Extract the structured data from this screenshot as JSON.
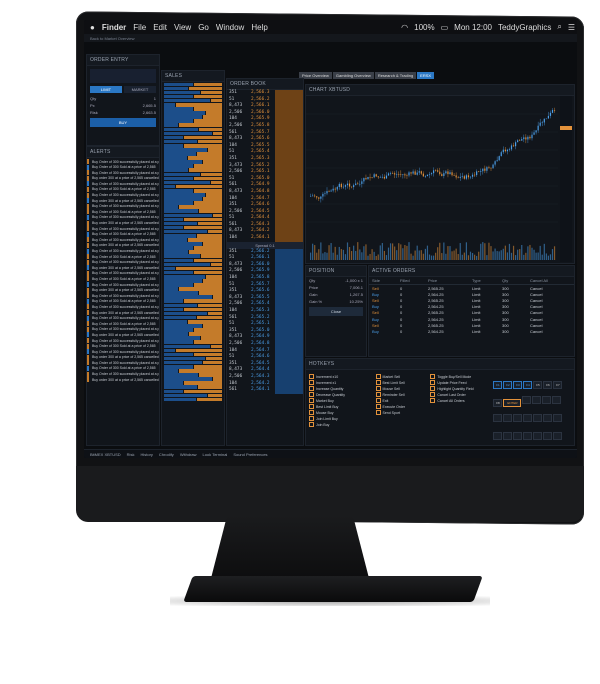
{
  "menubar": {
    "app": "Finder",
    "items": [
      "File",
      "Edit",
      "View",
      "Go",
      "Window",
      "Help"
    ],
    "battery": "100%",
    "clock": "Mon 12:00",
    "user": "TeddyGraphics"
  },
  "subbar": {
    "text": "Back to Market Overview"
  },
  "workspace_tabs": [
    "Price Overview",
    "Gambling Overview",
    "Research & Trading",
    "ERSX"
  ],
  "order_entry": {
    "title": "ORDER ENTRY",
    "type_options": [
      "LIMIT",
      "MARKET"
    ],
    "rows": [
      {
        "label": "Qty",
        "value": "1"
      },
      {
        "label": "Px",
        "value": "2,665.5"
      },
      {
        "label": "Risk",
        "value": "2,663.5"
      }
    ],
    "buy_label": "BUY"
  },
  "alerts": {
    "title": "ALERTS",
    "items": [
      "Buy Order of 300 successfully placed at a price of 2,564",
      "Buy Order of 300 Sold at a price of 2,565",
      "Buy Order of 300 successfully placed at a price of 2,564",
      "Buy order 300 at a price of 2,565 cancelled",
      "Buy Order of 300 successfully placed at a price of 2,564",
      "Buy Order of 300 Sold at a price of 2,565",
      "Buy Order of 300 successfully placed at a price of 2,564",
      "Buy order 300 at a price of 2,565 cancelled",
      "Buy Order of 300 successfully placed at a price of 2,564",
      "Buy Order of 300 Sold at a price of 2,565",
      "Buy Order of 300 successfully placed at a price of 2,564",
      "Buy order 300 at a price of 2,565 cancelled",
      "Buy Order of 300 successfully placed at a price of 2,564",
      "Buy Order of 300 Sold at a price of 2,565",
      "Buy Order of 300 successfully placed at a price of 2,564",
      "Buy order 300 at a price of 2,565 cancelled",
      "Buy Order of 300 successfully placed at a price of 2,564",
      "Buy Order of 300 Sold at a price of 2,565",
      "Buy Order of 300 successfully placed at a price of 2,564",
      "Buy order 300 at a price of 2,565 cancelled",
      "Buy Order of 300 successfully placed at a price of 2,564",
      "Buy Order of 300 Sold at a price of 2,565",
      "Buy Order of 300 successfully placed at a price of 2,564",
      "Buy order 300 at a price of 2,565 cancelled",
      "Buy Order of 300 successfully placed at a price of 2,564",
      "Buy Order of 300 Sold at a price of 2,565",
      "Buy Order of 300 successfully placed at a price of 2,564",
      "Buy order 300 at a price of 2,565 cancelled",
      "Buy Order of 300 successfully placed at a price of 2,564",
      "Buy Order of 300 Sold at a price of 2,565",
      "Buy Order of 300 successfully placed at a price of 2,564",
      "Buy order 300 at a price of 2,565 cancelled",
      "Buy Order of 300 successfully placed at a price of 2,564",
      "Buy Order of 300 Sold at a price of 2,565",
      "Buy Order of 300 successfully placed at a price of 2,564",
      "Buy order 300 at a price of 2,565 cancelled",
      "Buy Order of 300 successfully placed at a price of 2,564",
      "Buy Order of 300 Sold at a price of 2,565",
      "Buy Order of 300 successfully placed at a price of 2,564",
      "Buy order 300 at a price of 2,565 cancelled"
    ]
  },
  "sales": {
    "title": "SALES"
  },
  "order_book": {
    "title": "ORDER BOOK",
    "asks": [
      {
        "q": "351",
        "p": "2,566.3"
      },
      {
        "q": "51",
        "p": "2,566.2"
      },
      {
        "q": "8,473",
        "p": "2,566.1"
      },
      {
        "q": "2,506",
        "p": "2,566.0"
      },
      {
        "q": "104",
        "p": "2,565.9"
      },
      {
        "q": "2,506",
        "p": "2,565.8"
      },
      {
        "q": "561",
        "p": "2,565.7"
      },
      {
        "q": "8,473",
        "p": "2,565.6"
      },
      {
        "q": "104",
        "p": "2,565.5"
      },
      {
        "q": "51",
        "p": "2,565.4"
      },
      {
        "q": "351",
        "p": "2,565.3"
      },
      {
        "q": "3,473",
        "p": "2,565.2"
      },
      {
        "q": "2,506",
        "p": "2,565.1"
      },
      {
        "q": "51",
        "p": "2,565.0"
      },
      {
        "q": "561",
        "p": "2,564.9"
      },
      {
        "q": "8,473",
        "p": "2,564.8"
      },
      {
        "q": "104",
        "p": "2,564.7"
      },
      {
        "q": "351",
        "p": "2,564.6"
      },
      {
        "q": "2,506",
        "p": "2,564.5"
      },
      {
        "q": "51",
        "p": "2,564.4"
      },
      {
        "q": "561",
        "p": "2,564.3"
      },
      {
        "q": "8,473",
        "p": "2,564.2"
      },
      {
        "q": "104",
        "p": "2,564.1"
      }
    ],
    "spread_label": "Spread 0.1",
    "bids": [
      {
        "q": "351",
        "p": "2,566.2"
      },
      {
        "q": "51",
        "p": "2,566.1"
      },
      {
        "q": "8,473",
        "p": "2,566.0"
      },
      {
        "q": "2,506",
        "p": "2,565.9"
      },
      {
        "q": "104",
        "p": "2,565.8"
      },
      {
        "q": "51",
        "p": "2,565.7"
      },
      {
        "q": "351",
        "p": "2,565.6"
      },
      {
        "q": "8,473",
        "p": "2,565.5"
      },
      {
        "q": "2,506",
        "p": "2,565.4"
      },
      {
        "q": "104",
        "p": "2,565.3"
      },
      {
        "q": "561",
        "p": "2,565.2"
      },
      {
        "q": "51",
        "p": "2,565.1"
      },
      {
        "q": "351",
        "p": "2,565.0"
      },
      {
        "q": "8,473",
        "p": "2,564.9"
      },
      {
        "q": "2,506",
        "p": "2,564.8"
      },
      {
        "q": "104",
        "p": "2,564.7"
      },
      {
        "q": "51",
        "p": "2,564.6"
      },
      {
        "q": "351",
        "p": "2,564.5"
      },
      {
        "q": "8,473",
        "p": "2,564.4"
      },
      {
        "q": "2,506",
        "p": "2,564.3"
      },
      {
        "q": "104",
        "p": "2,564.2"
      },
      {
        "q": "561",
        "p": "2,564.1"
      }
    ]
  },
  "chart": {
    "title": "CHART XBTUSD",
    "colors": {
      "up": "#4b9ee8",
      "down": "#e3923b"
    }
  },
  "position": {
    "title": "POSITION",
    "fields": [
      {
        "label": "Qty",
        "value": "-1,000 x 1"
      },
      {
        "label": "Price",
        "value": "7,006.1"
      },
      {
        "label": "Gain",
        "value": "1,267.5"
      },
      {
        "label": "Gain %",
        "value": "10.25%"
      }
    ],
    "close_label": "Close"
  },
  "active_orders": {
    "title": "ACTIVE ORDERS",
    "headers": [
      "Side",
      "Filled",
      "Price",
      "Type",
      "Qty",
      "Cancel All"
    ],
    "rows": [
      {
        "side": "Sell",
        "filled": "0",
        "price": "2,565.25",
        "type": "Limit",
        "qty": "300",
        "cancel": "Cancel"
      },
      {
        "side": "Buy",
        "filled": "0",
        "price": "2,564.25",
        "type": "Limit",
        "qty": "300",
        "cancel": "Cancel"
      },
      {
        "side": "Sell",
        "filled": "0",
        "price": "2,565.25",
        "type": "Limit",
        "qty": "300",
        "cancel": "Cancel"
      },
      {
        "side": "Buy",
        "filled": "0",
        "price": "2,564.25",
        "type": "Limit",
        "qty": "300",
        "cancel": "Cancel"
      },
      {
        "side": "Sell",
        "filled": "0",
        "price": "2,565.25",
        "type": "Limit",
        "qty": "300",
        "cancel": "Cancel"
      },
      {
        "side": "Buy",
        "filled": "0",
        "price": "2,564.25",
        "type": "Limit",
        "qty": "300",
        "cancel": "Cancel"
      },
      {
        "side": "Sell",
        "filled": "0",
        "price": "2,565.25",
        "type": "Limit",
        "qty": "300",
        "cancel": "Cancel"
      },
      {
        "side": "Buy",
        "filled": "0",
        "price": "2,564.25",
        "type": "Limit",
        "qty": "300",
        "cancel": "Cancel"
      }
    ]
  },
  "hotkeys": {
    "title": "HOTKEYS",
    "actions_a": [
      "Increment x10",
      "Increment x1",
      "Increase Quantity",
      "Decrease Quantity",
      "Market Buy",
      "Best Limit Buy",
      "Mouse Buy",
      "Join Limit Buy",
      "Join Buy"
    ],
    "actions_b": [
      "Market Sell",
      "Best Limit Sell",
      "Mouse Sell",
      "Reminder Sell",
      "Exit",
      "Execute Order",
      "Send Sport"
    ],
    "actions_c": [
      "Toggle Buy/Sell Mode",
      "Update Price Feed",
      "Highlight Quantity Field",
      "Cancel Last Order",
      "Cancel All Orders"
    ],
    "keys": [
      "F1",
      "F2",
      "F3",
      "F4",
      "F5",
      "F6",
      "F7",
      "F8",
      "ENTER"
    ]
  },
  "dock": {
    "items": [
      "BitMEX XBTUSD",
      "Risk",
      "History",
      "Chrodify",
      "Withdraw",
      "Look Terminal",
      "Sound Preferences"
    ]
  }
}
